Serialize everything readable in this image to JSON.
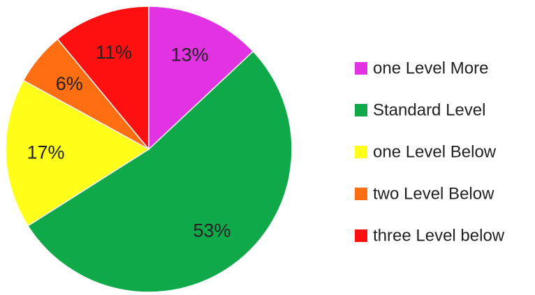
{
  "chart_data": {
    "type": "pie",
    "title": "",
    "categories": [
      "one Level More",
      "Standard Level",
      "one Level Below",
      "two Level Below",
      "three Level below"
    ],
    "values": [
      13,
      53,
      17,
      6,
      11
    ],
    "labels": [
      "13%",
      "53%",
      "17%",
      "6%",
      "11%"
    ],
    "colors": [
      "#e233e2",
      "#10a94a",
      "#ffff19",
      "#ff6e10",
      "#ff1010"
    ],
    "start_angle": "top (12 o'clock)",
    "direction": "clockwise",
    "legend": {
      "position": "right",
      "entries": [
        "one Level More",
        "Standard Level",
        "one Level Below",
        "two Level Below",
        "three Level below"
      ]
    }
  }
}
